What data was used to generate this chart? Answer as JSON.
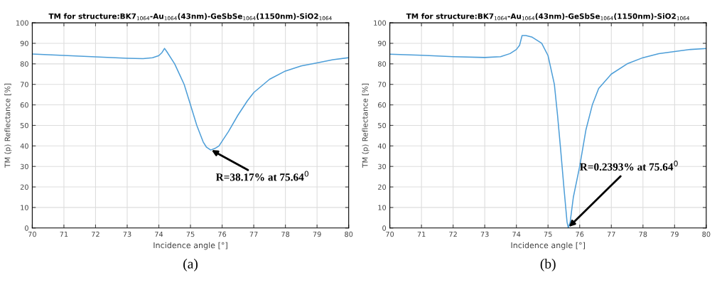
{
  "chart_data": [
    {
      "type": "line",
      "title": "TM for structure:BK7$_{1064}$-Au$_{1064}$(43nm)-GeSbSe$_{1064}$(1150nm)-SiO2$_{1064}$",
      "xlabel": "Incidence angle [°]",
      "ylabel": "TM (p) Reflectance [%]",
      "x": [
        70,
        71,
        72,
        73,
        73.5,
        73.8,
        74,
        74.1,
        74.18,
        74.25,
        74.5,
        74.8,
        75,
        75.2,
        75.4,
        75.5,
        75.64,
        75.8,
        75.9,
        76.2,
        76.5,
        76.8,
        77,
        77.5,
        78,
        78.5,
        79,
        79.5,
        80
      ],
      "series": [
        {
          "color": "#4d9ed8",
          "values": [
            84.8,
            84.1,
            83.4,
            82.7,
            82.5,
            83,
            84,
            85.5,
            87.5,
            86,
            80,
            70,
            60,
            50,
            42,
            39.5,
            38,
            39,
            40,
            47,
            55,
            62,
            66,
            72.5,
            76.5,
            79,
            80.5,
            82,
            83
          ]
        }
      ],
      "annotations": [
        {
          "text": "R=38.17% at 75.64$^{0}$",
          "x": 75.64,
          "y": 38.17
        },
        "(a)"
      ],
      "xlim": [
        70,
        80
      ],
      "ylim": [
        0,
        100
      ],
      "xticks": [
        70,
        71,
        72,
        73,
        74,
        75,
        76,
        77,
        78,
        79,
        80
      ],
      "yticks": [
        0,
        10,
        20,
        30,
        40,
        50,
        60,
        70,
        80,
        90,
        100
      ],
      "grid": true,
      "legend": false,
      "line_style": "solid",
      "marker": "none"
    },
    {
      "type": "line",
      "title": "TM for structure:BK7$_{1064}$-Au$_{1064}$(43nm)-GeSbSe$_{1064}$(1150nm)-SiO2$_{1064}$",
      "xlabel": "Incidence angle [°]",
      "ylabel": "TM (p) Reflectance [%]",
      "x": [
        70,
        71,
        72,
        73,
        73.5,
        73.8,
        74,
        74.1,
        74.18,
        74.3,
        74.5,
        74.8,
        75,
        75.2,
        75.3,
        75.4,
        75.5,
        75.6,
        75.64,
        75.7,
        75.8,
        76,
        76.2,
        76.4,
        76.6,
        77,
        77.5,
        78,
        78.5,
        79,
        79.5,
        80
      ],
      "series": [
        {
          "color": "#4d9ed8",
          "values": [
            84.7,
            84.2,
            83.5,
            83.1,
            83.5,
            85,
            87,
            89,
            93.8,
            93.8,
            93,
            90,
            84,
            70,
            55,
            38,
            20,
            3,
            0,
            3,
            15,
            30,
            48,
            60,
            68,
            75,
            80,
            83,
            85,
            86,
            87,
            87.5
          ]
        }
      ],
      "annotations": [
        {
          "text": "R=0.2393% at 75.64$^{0}$",
          "x": 75.64,
          "y": 0.2393
        },
        "(b)"
      ],
      "xlim": [
        70,
        80
      ],
      "ylim": [
        0,
        100
      ],
      "xticks": [
        70,
        71,
        72,
        73,
        74,
        75,
        76,
        77,
        78,
        79,
        80
      ],
      "yticks": [
        0,
        10,
        20,
        30,
        40,
        50,
        60,
        70,
        80,
        90,
        100
      ],
      "grid": true,
      "legend": false,
      "line_style": "solid",
      "marker": "none"
    }
  ]
}
